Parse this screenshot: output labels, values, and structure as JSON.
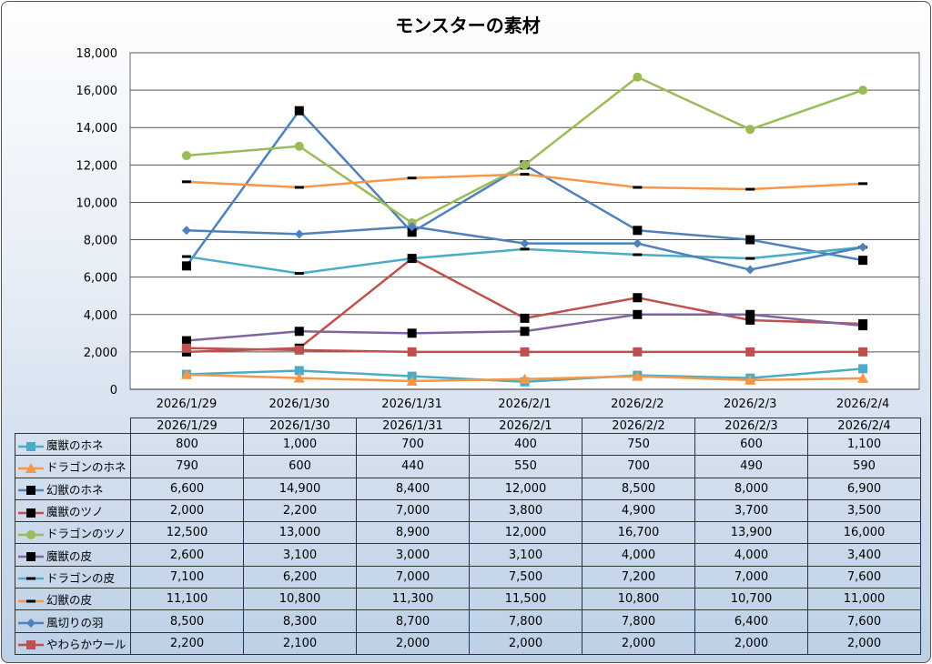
{
  "chart_data": {
    "type": "line",
    "title": "モンスターの素材",
    "categories": [
      "2026/1/29",
      "2026/1/30",
      "2026/1/31",
      "2026/2/1",
      "2026/2/2",
      "2026/2/3",
      "2026/2/4"
    ],
    "ylim": [
      0,
      18000
    ],
    "yticks": [
      "0",
      "2,000",
      "4,000",
      "6,000",
      "8,000",
      "10,000",
      "12,000",
      "14,000",
      "16,000",
      "18,000"
    ],
    "grid": true,
    "legend": "data-table",
    "series": [
      {
        "name": "魔獣のホネ",
        "color": "#4BACC6",
        "marker": "square",
        "markerColor": "#4BACC6",
        "values": [
          800,
          1000,
          700,
          400,
          750,
          600,
          1100
        ],
        "labels": [
          "800",
          "1,000",
          "700",
          "400",
          "750",
          "600",
          "1,100"
        ]
      },
      {
        "name": "ドラゴンのホネ",
        "color": "#F79646",
        "marker": "triangle",
        "markerColor": "#F79646",
        "values": [
          790,
          600,
          440,
          550,
          700,
          490,
          590
        ],
        "labels": [
          "790",
          "600",
          "440",
          "550",
          "700",
          "490",
          "590"
        ]
      },
      {
        "name": "幻獣のホネ",
        "color": "#4F81BD",
        "marker": "square",
        "markerColor": "#000000",
        "values": [
          6600,
          14900,
          8400,
          12000,
          8500,
          8000,
          6900
        ],
        "labels": [
          "6,600",
          "14,900",
          "8,400",
          "12,000",
          "8,500",
          "8,000",
          "6,900"
        ]
      },
      {
        "name": "魔獣のツノ",
        "color": "#C0504D",
        "marker": "square",
        "markerColor": "#000000",
        "values": [
          2000,
          2200,
          7000,
          3800,
          4900,
          3700,
          3500
        ],
        "labels": [
          "2,000",
          "2,200",
          "7,000",
          "3,800",
          "4,900",
          "3,700",
          "3,500"
        ]
      },
      {
        "name": "ドラゴンのツノ",
        "color": "#9BBB59",
        "marker": "circle",
        "markerColor": "#9BBB59",
        "values": [
          12500,
          13000,
          8900,
          12000,
          16700,
          13900,
          16000
        ],
        "labels": [
          "12,500",
          "13,000",
          "8,900",
          "12,000",
          "16,700",
          "13,900",
          "16,000"
        ]
      },
      {
        "name": "魔獣の皮",
        "color": "#8064A2",
        "marker": "square",
        "markerColor": "#000000",
        "values": [
          2600,
          3100,
          3000,
          3100,
          4000,
          4000,
          3400
        ],
        "labels": [
          "2,600",
          "3,100",
          "3,000",
          "3,100",
          "4,000",
          "4,000",
          "3,400"
        ]
      },
      {
        "name": "ドラゴンの皮",
        "color": "#4BACC6",
        "marker": "dash",
        "markerColor": "#000000",
        "values": [
          7100,
          6200,
          7000,
          7500,
          7200,
          7000,
          7600
        ],
        "labels": [
          "7,100",
          "6,200",
          "7,000",
          "7,500",
          "7,200",
          "7,000",
          "7,600"
        ]
      },
      {
        "name": "幻獣の皮",
        "color": "#F79646",
        "marker": "dash",
        "markerColor": "#000000",
        "values": [
          11100,
          10800,
          11300,
          11500,
          10800,
          10700,
          11000
        ],
        "labels": [
          "11,100",
          "10,800",
          "11,300",
          "11,500",
          "10,800",
          "10,700",
          "11,000"
        ]
      },
      {
        "name": "風切りの羽",
        "color": "#4F81BD",
        "marker": "diamond",
        "markerColor": "#4F81BD",
        "values": [
          8500,
          8300,
          8700,
          7800,
          7800,
          6400,
          7600
        ],
        "labels": [
          "8,500",
          "8,300",
          "8,700",
          "7,800",
          "7,800",
          "6,400",
          "7,600"
        ]
      },
      {
        "name": "やわらかウール",
        "color": "#C0504D",
        "marker": "square",
        "markerColor": "#C0504D",
        "values": [
          2200,
          2100,
          2000,
          2000,
          2000,
          2000,
          2000
        ],
        "labels": [
          "2,200",
          "2,100",
          "2,000",
          "2,000",
          "2,000",
          "2,000",
          "2,000"
        ]
      }
    ]
  }
}
